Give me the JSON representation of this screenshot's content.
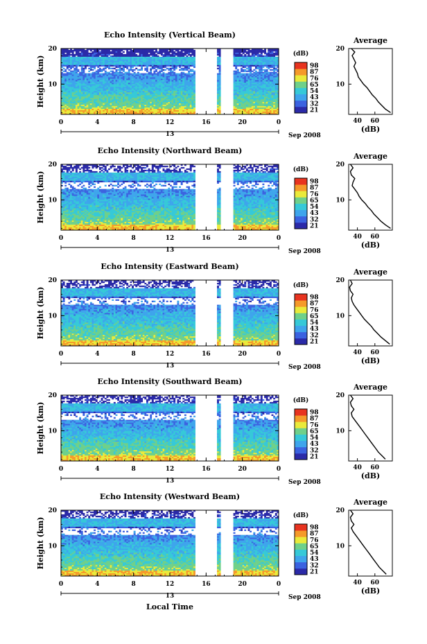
{
  "figure": {
    "xlabel": "Local Time",
    "date_label": "Sep 2008",
    "day_marker": "13",
    "colorbar_title": "(dB)",
    "colorbar_ticks": [
      "98",
      "87",
      "76",
      "65",
      "54",
      "43",
      "32",
      "21"
    ],
    "avg_title": "Average",
    "avg_xlabel": "(dB)",
    "ylabel": "Height (km)"
  },
  "colors": {
    "dark_blue": "#2b2aa8",
    "blue": "#3b62e0",
    "light_blue": "#3ea5ec",
    "cyan": "#36c9d8",
    "green": "#6fd08a",
    "yellow": "#eaea3a",
    "orange": "#f59a2a",
    "red": "#e8331f"
  },
  "chart_data": [
    {
      "type": "heatmap",
      "title": "Echo Intensity (Vertical Beam)",
      "xlabel": "",
      "ylabel": "Height (km)",
      "x_ticks": [
        "0",
        "4",
        "8",
        "12",
        "16",
        "20",
        "0"
      ],
      "y_ticks": [
        "10",
        "20"
      ],
      "xlim": [
        0,
        24
      ],
      "ylim": [
        1.5,
        20
      ],
      "colorbar_ticks": [
        "98",
        "87",
        "76",
        "65",
        "54",
        "43",
        "32",
        "21"
      ],
      "data_gaps_hours": [
        [
          14.9,
          17.1
        ],
        [
          17.7,
          18.9
        ]
      ],
      "average_profile": {
        "title": "Average",
        "xlabel": "(dB)",
        "x_ticks": [
          "40",
          "60"
        ],
        "y_ticks": [
          "10",
          "20"
        ],
        "xlim": [
          30,
          80
        ],
        "ylim": [
          1.5,
          20
        ],
        "height_km": [
          2,
          3,
          4,
          5,
          6,
          7,
          8,
          9,
          10,
          11,
          12,
          13,
          14,
          15,
          16,
          17,
          18,
          19,
          20
        ],
        "db": [
          78,
          72,
          68,
          64,
          61,
          57,
          54,
          51,
          47,
          44,
          41,
          40,
          38,
          36,
          38,
          36,
          34,
          37,
          33
        ]
      }
    },
    {
      "type": "heatmap",
      "title": "Echo Intensity (Northward Beam)",
      "xlabel": "",
      "ylabel": "Height (km)",
      "x_ticks": [
        "0",
        "4",
        "8",
        "12",
        "16",
        "20",
        "0"
      ],
      "y_ticks": [
        "10",
        "20"
      ],
      "xlim": [
        0,
        24
      ],
      "ylim": [
        1.5,
        20
      ],
      "colorbar_ticks": [
        "98",
        "87",
        "76",
        "65",
        "54",
        "43",
        "32",
        "21"
      ],
      "data_gaps_hours": [
        [
          14.9,
          17.1
        ],
        [
          17.7,
          18.9
        ]
      ],
      "average_profile": {
        "title": "Average",
        "xlabel": "(dB)",
        "x_ticks": [
          "40",
          "60"
        ],
        "y_ticks": [
          "10",
          "20"
        ],
        "xlim": [
          30,
          80
        ],
        "ylim": [
          1.5,
          20
        ],
        "height_km": [
          2,
          3,
          4,
          5,
          6,
          7,
          8,
          9,
          10,
          11,
          12,
          13,
          14,
          15,
          16,
          17,
          18,
          19,
          20
        ],
        "db": [
          78,
          72,
          67,
          63,
          59,
          56,
          52,
          49,
          45,
          42,
          40,
          37,
          34,
          35,
          37,
          33,
          32,
          35,
          32
        ]
      }
    },
    {
      "type": "heatmap",
      "title": "Echo Intensity (Eastward Beam)",
      "xlabel": "",
      "ylabel": "Height (km)",
      "x_ticks": [
        "0",
        "4",
        "8",
        "12",
        "16",
        "20",
        "0"
      ],
      "y_ticks": [
        "10",
        "20"
      ],
      "xlim": [
        0,
        24
      ],
      "ylim": [
        1.5,
        20
      ],
      "colorbar_ticks": [
        "98",
        "87",
        "76",
        "65",
        "54",
        "43",
        "32",
        "21"
      ],
      "data_gaps_hours": [
        [
          14.9,
          17.1
        ],
        [
          17.7,
          18.9
        ]
      ],
      "average_profile": {
        "title": "Average",
        "xlabel": "(dB)",
        "x_ticks": [
          "40",
          "60"
        ],
        "y_ticks": [
          "10",
          "20"
        ],
        "xlim": [
          30,
          80
        ],
        "ylim": [
          1.5,
          20
        ],
        "height_km": [
          2,
          3,
          4,
          5,
          6,
          7,
          8,
          9,
          10,
          11,
          12,
          13,
          14,
          15,
          16,
          17,
          18,
          19,
          20
        ],
        "db": [
          77,
          72,
          67,
          63,
          59,
          56,
          52,
          48,
          45,
          42,
          39,
          36,
          34,
          33,
          35,
          32,
          31,
          34,
          32
        ]
      }
    },
    {
      "type": "heatmap",
      "title": "Echo Intensity (Southward Beam)",
      "xlabel": "",
      "ylabel": "Height (km)",
      "x_ticks": [
        "0",
        "4",
        "8",
        "12",
        "16",
        "20",
        "0"
      ],
      "y_ticks": [
        "10",
        "20"
      ],
      "xlim": [
        0,
        24
      ],
      "ylim": [
        1.5,
        20
      ],
      "colorbar_ticks": [
        "98",
        "87",
        "76",
        "65",
        "54",
        "43",
        "32",
        "21"
      ],
      "data_gaps_hours": [
        [
          14.9,
          17.1
        ],
        [
          17.7,
          18.9
        ]
      ],
      "average_profile": {
        "title": "Average",
        "xlabel": "(dB)",
        "x_ticks": [
          "40",
          "60"
        ],
        "y_ticks": [
          "10",
          "20"
        ],
        "xlim": [
          30,
          80
        ],
        "ylim": [
          1.5,
          20
        ],
        "height_km": [
          2,
          3,
          4,
          5,
          6,
          7,
          8,
          9,
          10,
          11,
          12,
          13,
          14,
          15,
          16,
          17,
          18,
          19,
          20
        ],
        "db": [
          72,
          68,
          64,
          61,
          58,
          55,
          52,
          49,
          46,
          43,
          40,
          37,
          34,
          33,
          36,
          33,
          32,
          35,
          32
        ]
      }
    },
    {
      "type": "heatmap",
      "title": "Echo Intensity (Westward Beam)",
      "xlabel": "",
      "ylabel": "Height (km)",
      "x_ticks": [
        "0",
        "4",
        "8",
        "12",
        "16",
        "20",
        "0"
      ],
      "y_ticks": [
        "10",
        "20"
      ],
      "xlim": [
        0,
        24
      ],
      "ylim": [
        1.5,
        20
      ],
      "colorbar_ticks": [
        "98",
        "87",
        "76",
        "65",
        "54",
        "43",
        "32",
        "21"
      ],
      "data_gaps_hours": [
        [
          14.9,
          17.1
        ],
        [
          17.7,
          18.9
        ]
      ],
      "average_profile": {
        "title": "Average",
        "xlabel": "(dB)",
        "x_ticks": [
          "40",
          "60"
        ],
        "y_ticks": [
          "10",
          "20"
        ],
        "xlim": [
          30,
          80
        ],
        "ylim": [
          1.5,
          20
        ],
        "height_km": [
          2,
          3,
          4,
          5,
          6,
          7,
          8,
          9,
          10,
          11,
          12,
          13,
          14,
          15,
          16,
          17,
          18,
          19,
          20
        ],
        "db": [
          73,
          69,
          65,
          62,
          59,
          56,
          53,
          50,
          47,
          44,
          41,
          38,
          35,
          33,
          36,
          33,
          32,
          35,
          32
        ]
      }
    }
  ]
}
